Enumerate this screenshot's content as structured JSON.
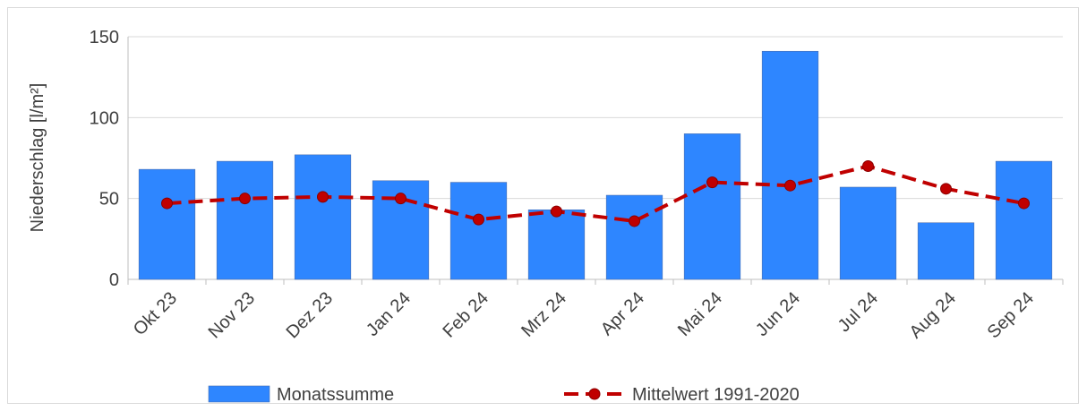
{
  "chart_data": {
    "type": "bar_line",
    "ylabel": "Niederschlag [l/m²]",
    "categories": [
      "Okt 23",
      "Nov 23",
      "Dez 23",
      "Jan 24",
      "Feb 24",
      "Mrz 24",
      "Apr 24",
      "Mai 24",
      "Jun 24",
      "Jul 24",
      "Aug 24",
      "Sep 24"
    ],
    "series": [
      {
        "name": "Monatssumme",
        "type": "bar",
        "color": "#2e86ff",
        "values": [
          68,
          73,
          77,
          61,
          60,
          43,
          52,
          90,
          141,
          57,
          35,
          73
        ]
      },
      {
        "name": "Mittelwert 1991-2020",
        "type": "line",
        "color": "#c00000",
        "values": [
          47,
          50,
          51,
          50,
          37,
          42,
          36,
          60,
          58,
          70,
          56,
          47
        ]
      }
    ],
    "ylim": [
      0,
      150
    ],
    "yticks": [
      0,
      50,
      100,
      150
    ],
    "grid": true
  }
}
